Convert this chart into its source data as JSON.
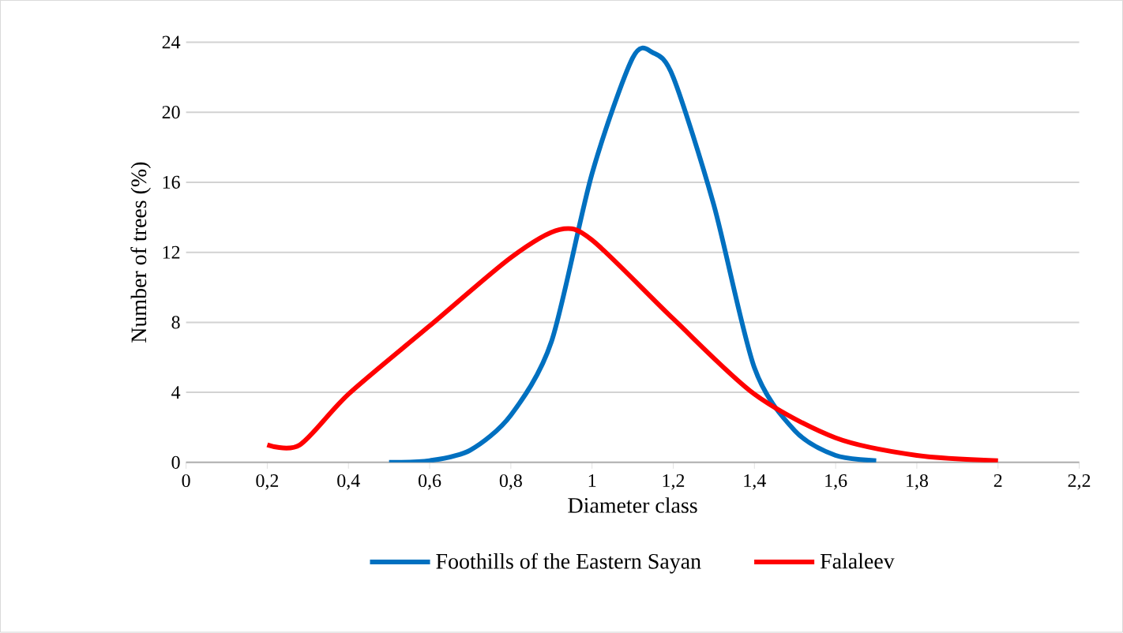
{
  "chart_data": {
    "type": "line",
    "xlabel": "Diameter class",
    "ylabel": "Number of trees (%)",
    "xlim": [
      0,
      2.2
    ],
    "xticks": [
      {
        "value": 0,
        "label": "0"
      },
      {
        "value": 0.2,
        "label": "0,2"
      },
      {
        "value": 0.4,
        "label": "0,4"
      },
      {
        "value": 0.6,
        "label": "0,6"
      },
      {
        "value": 0.8,
        "label": "0,8"
      },
      {
        "value": 1,
        "label": "1"
      },
      {
        "value": 1.2,
        "label": "1,2"
      },
      {
        "value": 1.4,
        "label": "1,4"
      },
      {
        "value": 1.6,
        "label": "1,6"
      },
      {
        "value": 1.8,
        "label": "1,8"
      },
      {
        "value": 2,
        "label": "2"
      },
      {
        "value": 2.2,
        "label": "2,2"
      }
    ],
    "ylim": [
      0,
      24
    ],
    "yticks": [
      0,
      4,
      8,
      12,
      16,
      20,
      24
    ],
    "grid": "y",
    "legend": "bottom",
    "marker": "none",
    "line_style": "solid",
    "series": [
      {
        "name": "Foothills of the Eastern Sayan",
        "color": "#0070c0",
        "x": [
          0.5,
          0.6,
          0.7,
          0.8,
          0.9,
          1.0,
          1.1,
          1.15,
          1.2,
          1.3,
          1.4,
          1.5,
          1.6,
          1.7
        ],
        "values": [
          0,
          0.1,
          0.7,
          2.7,
          6.9,
          16.5,
          23.1,
          23.4,
          22,
          14.7,
          5.4,
          1.8,
          0.4,
          0.1
        ]
      },
      {
        "name": "Falaleev",
        "color": "#ff0000",
        "x": [
          0.2,
          0.28,
          0.4,
          0.6,
          0.8,
          0.92,
          1.0,
          1.2,
          1.4,
          1.6,
          1.8,
          2.0
        ],
        "values": [
          1,
          1,
          3.9,
          7.8,
          11.7,
          13.3,
          12.7,
          8.2,
          3.9,
          1.4,
          0.4,
          0.1
        ]
      }
    ]
  }
}
